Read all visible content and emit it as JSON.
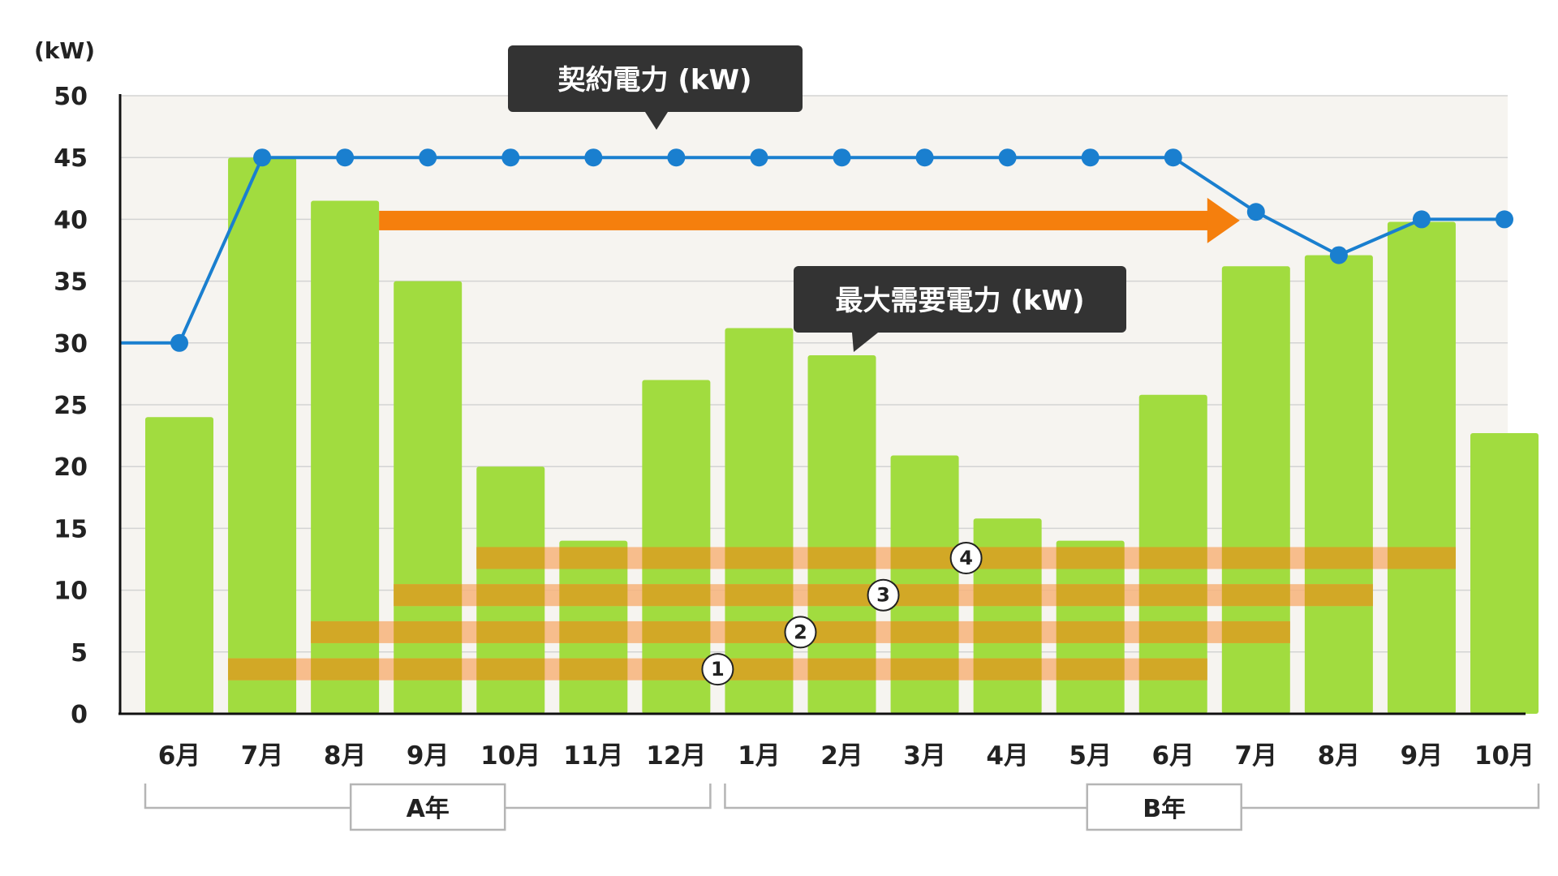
{
  "chart_data": {
    "type": "bar",
    "unit_label": "(kW)",
    "categories": [
      "6月",
      "7月",
      "8月",
      "9月",
      "10月",
      "11月",
      "12月",
      "1月",
      "2月",
      "3月",
      "4月",
      "5月",
      "6月",
      "7月",
      "8月",
      "9月",
      "10月"
    ],
    "year_groups": [
      {
        "label": "A年",
        "from": 0,
        "to": 6
      },
      {
        "label": "B年",
        "from": 7,
        "to": 16
      }
    ],
    "ylim": [
      0,
      50
    ],
    "yticks": [
      0,
      5,
      10,
      15,
      20,
      25,
      30,
      35,
      40,
      45,
      50
    ],
    "grid": true,
    "series": [
      {
        "name": "最大需要電力 (kW)",
        "type": "bar",
        "color": "#a1dc3f",
        "values": [
          24,
          45,
          41.5,
          35,
          20,
          14,
          27,
          31.2,
          29,
          20.9,
          15.8,
          14,
          25.8,
          36.2,
          37.1,
          39.8,
          22.7
        ]
      },
      {
        "name": "契約電力 (kW)",
        "type": "line",
        "color": "#1a7fcf",
        "values": [
          30,
          45,
          45,
          45,
          45,
          45,
          45,
          45,
          45,
          45,
          45,
          45,
          45,
          40.6,
          37.1,
          40,
          40
        ]
      }
    ],
    "callouts": [
      {
        "text": "契約電力 (kW)",
        "target": "contract-line"
      },
      {
        "text": "最大需要電力 (kW)",
        "target": "demand-bars"
      }
    ],
    "arrow": {
      "from_category": 2,
      "to_category": 13,
      "color": "#f57f0d",
      "level": 41.5
    },
    "windows": [
      {
        "label": "1",
        "start": 1,
        "end": 12
      },
      {
        "label": "2",
        "start": 2,
        "end": 13
      },
      {
        "label": "3",
        "start": 3,
        "end": 14
      },
      {
        "label": "4",
        "start": 4,
        "end": 15
      }
    ],
    "colors": {
      "plot_bg": "#f6f4f0",
      "grid": "#d3d3d3",
      "window": "#d2a826",
      "window_gap": "#f7b37a",
      "callout_bg": "#333333",
      "bracket": "#b5b5b5"
    }
  }
}
